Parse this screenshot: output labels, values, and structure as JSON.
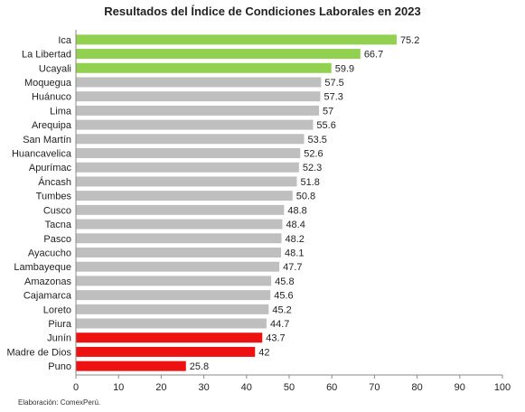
{
  "chart_data": {
    "type": "bar",
    "orientation": "horizontal",
    "title": "Resultados del Índice de Condiciones Laborales en 2023",
    "source": "Elaboración: ComexPerú.",
    "xlim": [
      0,
      100
    ],
    "x_ticks": [
      "0",
      "10",
      "20",
      "30",
      "40",
      "50",
      "60",
      "70",
      "80",
      "90",
      "100"
    ],
    "grid": false,
    "categories": [
      "Ica",
      "La Libertad",
      "Ucayali",
      "Moquegua",
      "Huánuco",
      "Lima",
      "Arequipa",
      "San Martín",
      "Huancavelica",
      "Apurímac",
      "Áncash",
      "Tumbes",
      "Cusco",
      "Tacna",
      "Pasco",
      "Ayacucho",
      "Lambayeque",
      "Amazonas",
      "Cajamarca",
      "Loreto",
      "Piura",
      "Junín",
      "Madre de Dios",
      "Puno"
    ],
    "values": [
      75.2,
      66.7,
      59.9,
      57.5,
      57.3,
      57,
      55.6,
      53.5,
      52.6,
      52.3,
      51.8,
      50.8,
      48.8,
      48.4,
      48.2,
      48.1,
      47.7,
      45.8,
      45.6,
      45.2,
      44.7,
      43.7,
      42,
      25.8
    ],
    "value_labels": [
      "75.2",
      "66.7",
      "59.9",
      "57.5",
      "57.3",
      "57",
      "55.6",
      "53.5",
      "52.6",
      "52.3",
      "51.8",
      "50.8",
      "48.8",
      "48.4",
      "48.2",
      "48.1",
      "47.7",
      "45.8",
      "45.6",
      "45.2",
      "44.7",
      "43.7",
      "42",
      "25.8"
    ],
    "bar_groups": [
      "top",
      "top",
      "top",
      "mid",
      "mid",
      "mid",
      "mid",
      "mid",
      "mid",
      "mid",
      "mid",
      "mid",
      "mid",
      "mid",
      "mid",
      "mid",
      "mid",
      "mid",
      "mid",
      "mid",
      "mid",
      "bottom",
      "bottom",
      "bottom"
    ],
    "colors": {
      "top": "#92d050",
      "mid": "#bfbfbf",
      "bottom": "#ee1111",
      "axis": "#888888",
      "text": "#222222"
    }
  }
}
